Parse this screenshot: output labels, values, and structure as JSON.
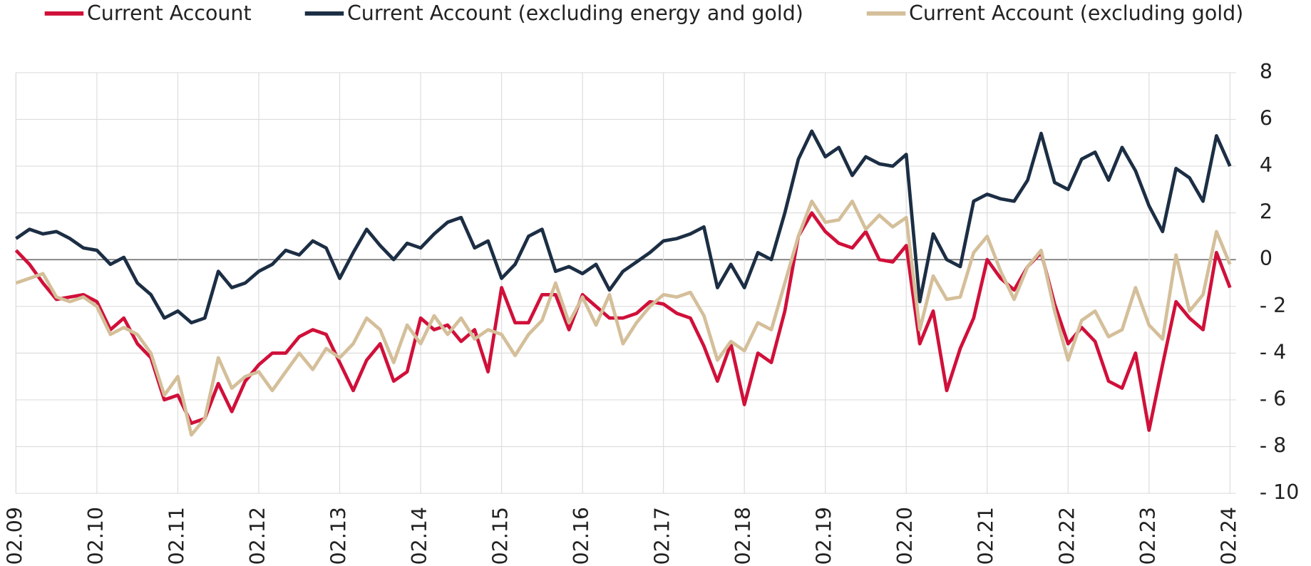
{
  "chart_data": {
    "type": "line",
    "categories": [
      "02.09",
      null,
      null,
      null,
      null,
      null,
      "02.10",
      null,
      null,
      null,
      null,
      null,
      "02.11",
      null,
      null,
      null,
      null,
      null,
      "02.12",
      null,
      null,
      null,
      null,
      null,
      "02.13",
      null,
      null,
      null,
      null,
      null,
      "02.14",
      null,
      null,
      null,
      null,
      null,
      "02.15",
      null,
      null,
      null,
      null,
      null,
      "02.16",
      null,
      null,
      null,
      null,
      null,
      "02.17",
      null,
      null,
      null,
      null,
      null,
      "02.18",
      null,
      null,
      null,
      null,
      null,
      "02.19",
      null,
      null,
      null,
      null,
      null,
      "02.20",
      null,
      null,
      null,
      null,
      null,
      "02.21",
      null,
      null,
      null,
      null,
      null,
      "02.22",
      null,
      null,
      null,
      null,
      null,
      "02.23",
      null,
      null,
      null,
      null,
      null,
      "02.24"
    ],
    "series": [
      {
        "name": "Current Account",
        "color": "#d0103a",
        "values": [
          0.4,
          -0.2,
          -1.0,
          -1.7,
          -1.6,
          -1.5,
          -1.8,
          -3.0,
          -2.5,
          -3.6,
          -4.2,
          -6.0,
          -5.8,
          -7.0,
          -6.8,
          -5.3,
          -6.5,
          -5.2,
          -4.5,
          -4.0,
          -4.0,
          -3.3,
          -3.0,
          -3.2,
          -4.4,
          -5.6,
          -4.3,
          -3.6,
          -5.2,
          -4.8,
          -2.5,
          -3.0,
          -2.8,
          -3.5,
          -3.0,
          -4.8,
          -1.2,
          -2.7,
          -2.7,
          -1.5,
          -1.5,
          -3.0,
          -1.5,
          -2.0,
          -2.5,
          -2.5,
          -2.3,
          -1.8,
          -1.9,
          -2.3,
          -2.5,
          -3.7,
          -5.2,
          -3.6,
          -6.2,
          -4.0,
          -4.4,
          -2.2,
          1.0,
          2.0,
          1.2,
          0.7,
          0.5,
          1.2,
          0.0,
          -0.1,
          0.6,
          -3.6,
          -2.2,
          -5.6,
          -3.8,
          -2.5,
          0.0,
          -0.8,
          -1.3,
          -0.3,
          0.3,
          -1.9,
          -3.6,
          -2.9,
          -3.5,
          -5.2,
          -5.5,
          -4.0,
          -7.3,
          -4.5,
          -1.8,
          -2.5,
          -3.0,
          0.3,
          -1.2
        ]
      },
      {
        "name": "Current Account (excluding energy and gold)",
        "color": "#1c2e44",
        "values": [
          0.9,
          1.3,
          1.1,
          1.2,
          0.9,
          0.5,
          0.4,
          -0.2,
          0.1,
          -1.0,
          -1.5,
          -2.5,
          -2.2,
          -2.7,
          -2.5,
          -0.5,
          -1.2,
          -1.0,
          -0.5,
          -0.2,
          0.4,
          0.2,
          0.8,
          0.5,
          -0.8,
          0.3,
          1.3,
          0.6,
          0.0,
          0.7,
          0.5,
          1.1,
          1.6,
          1.8,
          0.5,
          0.8,
          -0.8,
          -0.2,
          1.0,
          1.3,
          -0.5,
          -0.3,
          -0.6,
          -0.2,
          -1.3,
          -0.5,
          -0.1,
          0.3,
          0.8,
          0.9,
          1.1,
          1.4,
          -1.2,
          -0.2,
          -1.2,
          0.3,
          0.0,
          2.0,
          4.3,
          5.5,
          4.4,
          4.8,
          3.6,
          4.4,
          4.1,
          4.0,
          4.5,
          -1.8,
          1.1,
          0.0,
          -0.3,
          2.5,
          2.8,
          2.6,
          2.5,
          3.4,
          5.4,
          3.3,
          3.0,
          4.3,
          4.6,
          3.4,
          4.8,
          3.8,
          2.3,
          1.2,
          3.9,
          3.5,
          2.5,
          5.3,
          4.0
        ]
      },
      {
        "name": "Current Account  (excluding gold)",
        "color": "#d4bf9a",
        "values": [
          -1.0,
          -0.8,
          -0.6,
          -1.6,
          -1.8,
          -1.6,
          -2.0,
          -3.2,
          -2.9,
          -3.2,
          -4.0,
          -5.8,
          -5.0,
          -7.5,
          -6.8,
          -4.2,
          -5.5,
          -5.0,
          -4.8,
          -5.6,
          -4.8,
          -4.0,
          -4.7,
          -3.8,
          -4.2,
          -3.6,
          -2.5,
          -3.0,
          -4.4,
          -2.8,
          -3.6,
          -2.4,
          -3.2,
          -2.5,
          -3.4,
          -3.0,
          -3.2,
          -4.1,
          -3.2,
          -2.6,
          -1.0,
          -2.7,
          -1.6,
          -2.8,
          -1.5,
          -3.6,
          -2.7,
          -2.0,
          -1.5,
          -1.6,
          -1.4,
          -2.4,
          -4.3,
          -3.5,
          -3.9,
          -2.7,
          -3.0,
          -1.0,
          1.0,
          2.5,
          1.6,
          1.7,
          2.5,
          1.3,
          1.9,
          1.4,
          1.8,
          -3.0,
          -0.7,
          -1.7,
          -1.6,
          0.3,
          1.0,
          -0.5,
          -1.7,
          -0.3,
          0.4,
          -2.2,
          -4.3,
          -2.6,
          -2.2,
          -3.3,
          -3.0,
          -1.2,
          -2.8,
          -3.4,
          0.2,
          -2.2,
          -1.5,
          1.2,
          -0.2
        ]
      }
    ],
    "ylim": [
      -10,
      8
    ],
    "yticks": [
      8,
      6,
      4,
      2,
      0,
      {
        "value": -2,
        "label": "- 2"
      },
      {
        "value": -4,
        "label": "- 4"
      },
      {
        "value": -6,
        "label": "- 6"
      },
      {
        "value": -8,
        "label": "- 8"
      },
      {
        "value": -10,
        "label": "- 10"
      }
    ],
    "grid": true,
    "legend": "top"
  }
}
